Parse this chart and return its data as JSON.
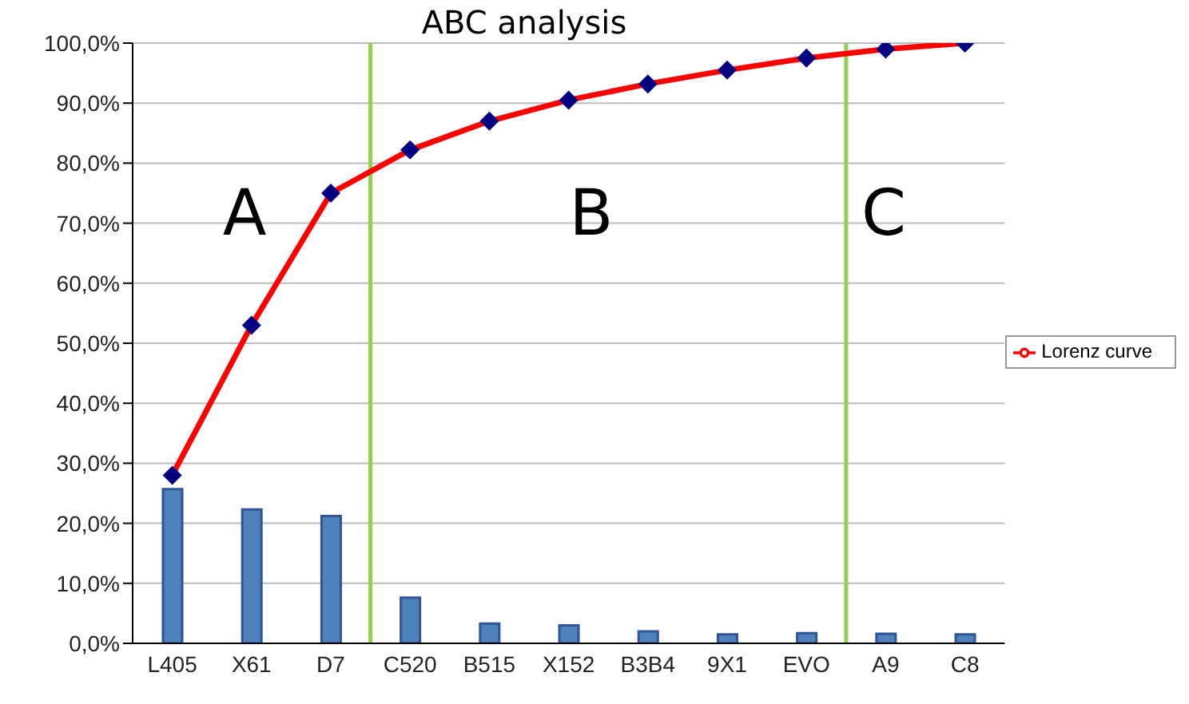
{
  "chart_data": {
    "type": "bar",
    "title": "ABC analysis",
    "categories": [
      "L405",
      "X61",
      "D7",
      "C520",
      "B515",
      "X152",
      "B3B4",
      "9X1",
      "EVO",
      "A9",
      "C8"
    ],
    "series": [
      {
        "color": "#4f81bd",
        "values": [
          25.7,
          22.3,
          21.2,
          7.6,
          3.3,
          3.0,
          2.0,
          1.5,
          1.7,
          1.6,
          1.5
        ]
      },
      {
        "type": "line",
        "name": "Lorenz curve",
        "color": "#ff0000",
        "marker": "diamond",
        "values": [
          28,
          53,
          75,
          82.2,
          87,
          90.5,
          93.2,
          95.5,
          97.5,
          99,
          100
        ]
      }
    ],
    "ylim": [
      0,
      100
    ],
    "yticks": [
      {
        "value": 0,
        "label": "0,0%"
      },
      {
        "value": 10,
        "label": "10,0%"
      },
      {
        "value": 20,
        "label": "20,0%"
      },
      {
        "value": 30,
        "label": "30,0%"
      },
      {
        "value": 40,
        "label": "40,0%"
      },
      {
        "value": 50,
        "label": "50,0%"
      },
      {
        "value": 60,
        "label": "60,0%"
      },
      {
        "value": 70,
        "label": "70,0%"
      },
      {
        "value": 80,
        "label": "80,0%"
      },
      {
        "value": 90,
        "label": "90,0%"
      },
      {
        "value": 100,
        "label": "100,0%"
      }
    ],
    "annotations": [
      "A",
      "B",
      "C"
    ],
    "grid": "y",
    "legend": "right"
  }
}
